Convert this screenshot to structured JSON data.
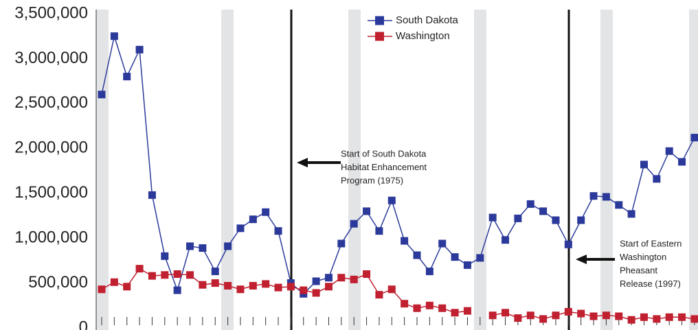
{
  "chart_data": {
    "type": "line",
    "categories": [
      null,
      null,
      null,
      null,
      null,
      null,
      null,
      null,
      null,
      null,
      null,
      null,
      null,
      null,
      null,
      null,
      null,
      null,
      null,
      null,
      null,
      null,
      null,
      null,
      null,
      null,
      null,
      null,
      null,
      null,
      null,
      null,
      null,
      null,
      null,
      null,
      null,
      null,
      null,
      null,
      null,
      null,
      null,
      null,
      null,
      null,
      null,
      null
    ],
    "series": [
      {
        "name": "South Dakota",
        "color": "#2b3a9a",
        "values": [
          2600000,
          3250000,
          2800000,
          3100000,
          1480000,
          800000,
          420000,
          910000,
          890000,
          630000,
          910000,
          1110000,
          1210000,
          1290000,
          1080000,
          500000,
          380000,
          520000,
          560000,
          940000,
          1160000,
          1300000,
          1080000,
          1420000,
          970000,
          810000,
          630000,
          940000,
          790000,
          700000,
          780000,
          1230000,
          980000,
          1220000,
          1380000,
          1300000,
          1200000,
          930000,
          1200000,
          1470000,
          1460000,
          1370000,
          1270000,
          1820000,
          1660000,
          1970000,
          1850000,
          2120000
        ]
      },
      {
        "name": "Washington",
        "color": "#c0202f",
        "values": [
          430000,
          510000,
          460000,
          660000,
          580000,
          590000,
          600000,
          590000,
          480000,
          500000,
          470000,
          430000,
          470000,
          490000,
          450000,
          460000,
          420000,
          390000,
          460000,
          560000,
          540000,
          600000,
          370000,
          430000,
          270000,
          220000,
          250000,
          220000,
          170000,
          190000,
          null,
          140000,
          170000,
          110000,
          140000,
          100000,
          140000,
          180000,
          160000,
          130000,
          140000,
          130000,
          90000,
          120000,
          100000,
          120000,
          120000,
          100000
        ]
      }
    ],
    "ylim": [
      0,
      3500000
    ],
    "yticks": [
      0,
      {
        "value": 500000,
        "label": "500,000"
      },
      {
        "value": 1000000,
        "label": "1,000,000"
      },
      {
        "value": 1500000,
        "label": "1,500,000"
      },
      {
        "value": 2000000,
        "label": "2,000,000"
      },
      {
        "value": 2500000,
        "label": "2,500,000"
      },
      {
        "value": 3000000,
        "label": "3,000,000"
      },
      {
        "value": 3500000,
        "label": "3,500,000"
      }
    ],
    "annotations": [
      {
        "lines": [
          "Start of South Dakota",
          "Habitat Enhancement",
          "Program (1975)"
        ]
      },
      {
        "lines": [
          "Start of Eastern",
          "Washington",
          "Pheasant",
          "Release (1997)"
        ]
      }
    ]
  }
}
